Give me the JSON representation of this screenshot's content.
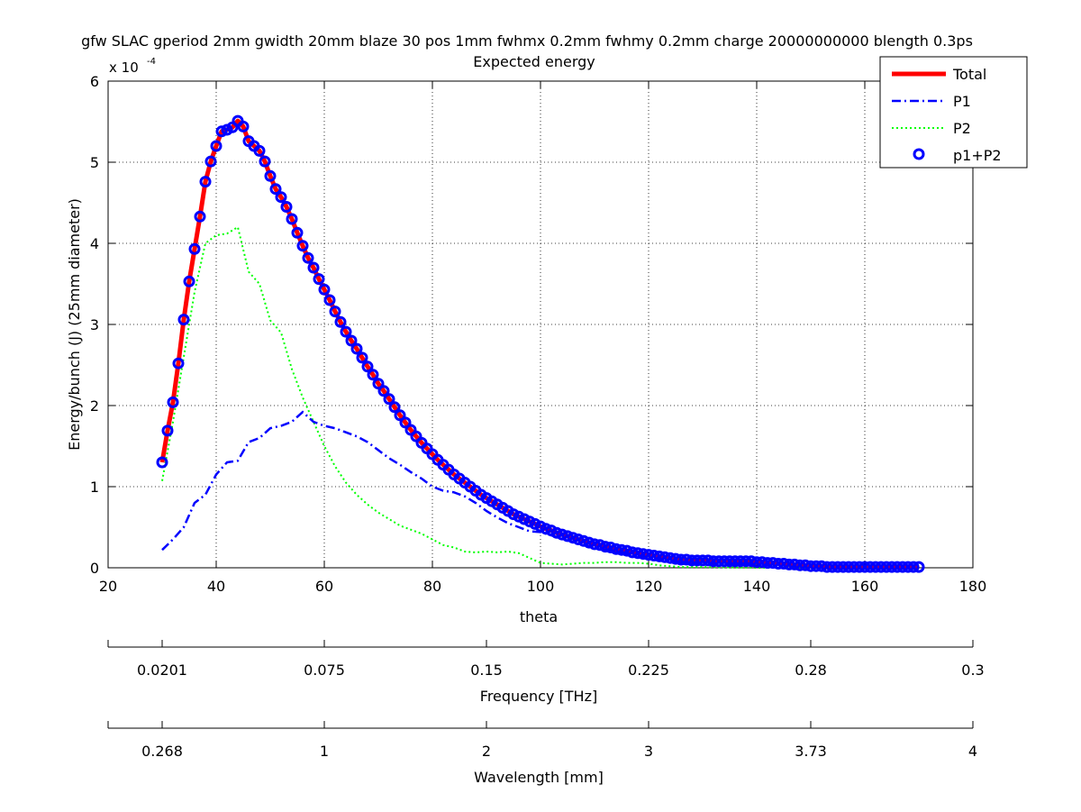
{
  "chart_data": {
    "type": "line",
    "title": "gfw SLAC gperiod 2mm gwidth 20mm blaze 30 pos 1mm fwhmx 0.2mm fwhmy 0.2mm charge 20000000000 blength 0.3ps",
    "subtitle": "Expected energy",
    "xlabel": "theta",
    "ylabel": "Energy/bunch (J) (25mm diameter)",
    "y_exponent_label": "x 10",
    "y_exponent": "-4",
    "xlim": [
      20,
      180
    ],
    "ylim": [
      0,
      6
    ],
    "x_ticks": [
      "20",
      "40",
      "60",
      "80",
      "100",
      "120",
      "140",
      "160",
      "180"
    ],
    "y_ticks": [
      "0",
      "1",
      "2",
      "3",
      "4",
      "5",
      "6"
    ],
    "grid": true,
    "legend_position": "top-right",
    "legend": [
      "Total",
      "P1",
      "P2",
      "p1+P2"
    ],
    "colors": {
      "total": "#ff0000",
      "p1": "#0000ff",
      "p2": "#00ff00",
      "p1p2": "#0000ff"
    },
    "secondary_axes": [
      {
        "label": "Frequency [THz]",
        "ticks": [
          {
            "theta": 30,
            "label": "0.0201"
          },
          {
            "theta": 60,
            "label": "0.075"
          },
          {
            "theta": 90,
            "label": "0.15"
          },
          {
            "theta": 120,
            "label": "0.225"
          },
          {
            "theta": 150,
            "label": "0.28"
          },
          {
            "theta": 180,
            "label": "0.3"
          }
        ]
      },
      {
        "label": "Wavelength [mm]",
        "ticks": [
          {
            "theta": 30,
            "label": "0.268"
          },
          {
            "theta": 60,
            "label": "1"
          },
          {
            "theta": 90,
            "label": "2"
          },
          {
            "theta": 120,
            "label": "3"
          },
          {
            "theta": 150,
            "label": "3.73"
          },
          {
            "theta": 180,
            "label": "4"
          }
        ]
      }
    ],
    "series": [
      {
        "name": "Total",
        "style": "solid",
        "x": [
          30,
          31,
          32,
          33,
          34,
          35,
          36,
          37,
          38,
          39,
          40,
          41,
          42,
          43,
          44,
          45,
          46,
          47,
          48,
          49,
          50,
          51,
          52,
          53,
          54,
          55,
          56,
          57,
          58,
          59,
          60,
          61,
          62,
          63,
          64,
          65,
          66,
          67,
          68,
          69,
          70,
          71,
          72,
          73,
          74,
          75,
          76,
          77,
          78,
          79,
          80,
          81,
          82,
          83,
          84,
          85,
          86,
          87,
          88,
          89,
          90,
          91,
          92,
          93,
          94,
          95,
          96,
          97,
          98,
          99,
          100,
          101,
          102,
          103,
          104,
          105,
          106,
          107,
          108,
          109,
          110,
          111,
          112,
          113,
          114,
          115,
          116,
          117,
          118,
          119,
          120,
          121,
          122,
          123,
          124,
          125,
          126,
          127,
          128,
          129,
          130,
          131,
          132,
          133,
          134,
          135,
          136,
          137,
          138,
          139,
          140,
          141,
          142,
          143,
          144,
          145,
          146,
          147,
          148,
          149,
          150,
          151,
          152,
          153,
          154,
          155,
          156,
          157,
          158,
          159,
          160,
          161,
          162,
          163,
          164,
          165,
          166,
          167,
          168,
          169,
          170
        ],
        "y": [
          1.3,
          1.69,
          2.04,
          2.52,
          3.06,
          3.53,
          3.93,
          4.33,
          4.76,
          5.01,
          5.2,
          5.38,
          5.4,
          5.43,
          5.51,
          5.44,
          5.26,
          5.2,
          5.14,
          5.01,
          4.83,
          4.67,
          4.57,
          4.45,
          4.3,
          4.13,
          3.97,
          3.82,
          3.7,
          3.56,
          3.43,
          3.3,
          3.16,
          3.03,
          2.91,
          2.8,
          2.7,
          2.59,
          2.48,
          2.38,
          2.27,
          2.18,
          2.08,
          1.98,
          1.88,
          1.79,
          1.7,
          1.62,
          1.54,
          1.47,
          1.4,
          1.33,
          1.27,
          1.21,
          1.15,
          1.1,
          1.05,
          1.0,
          0.95,
          0.9,
          0.86,
          0.82,
          0.78,
          0.74,
          0.7,
          0.66,
          0.63,
          0.6,
          0.57,
          0.54,
          0.51,
          0.48,
          0.46,
          0.43,
          0.41,
          0.39,
          0.37,
          0.35,
          0.33,
          0.31,
          0.29,
          0.28,
          0.26,
          0.25,
          0.23,
          0.22,
          0.21,
          0.19,
          0.18,
          0.17,
          0.16,
          0.15,
          0.14,
          0.13,
          0.12,
          0.11,
          0.1,
          0.1,
          0.09,
          0.09,
          0.09,
          0.09,
          0.08,
          0.08,
          0.08,
          0.08,
          0.08,
          0.08,
          0.08,
          0.08,
          0.07,
          0.07,
          0.06,
          0.06,
          0.05,
          0.05,
          0.04,
          0.04,
          0.03,
          0.03,
          0.02,
          0.02,
          0.02,
          0.01,
          0.01,
          0.01,
          0.01,
          0.01,
          0.01,
          0.01,
          0.01,
          0.01,
          0.01,
          0.01,
          0.01,
          0.01,
          0.01,
          0.01,
          0.01,
          0.01,
          0.01
        ]
      },
      {
        "name": "P1",
        "style": "dashdot",
        "x": [
          30,
          32,
          34,
          36,
          38,
          40,
          42,
          44,
          46,
          48,
          50,
          52,
          54,
          56,
          58,
          60,
          62,
          64,
          66,
          68,
          70,
          72,
          74,
          76,
          78,
          80,
          82,
          84,
          86,
          88,
          90,
          92,
          94,
          96,
          98,
          100,
          102,
          104,
          106,
          108,
          110,
          115,
          120,
          125,
          130,
          135,
          140,
          145,
          150,
          155,
          160,
          165,
          170
        ],
        "y": [
          0.22,
          0.35,
          0.5,
          0.8,
          0.9,
          1.15,
          1.3,
          1.32,
          1.55,
          1.6,
          1.72,
          1.75,
          1.8,
          1.92,
          1.8,
          1.75,
          1.72,
          1.67,
          1.62,
          1.55,
          1.45,
          1.35,
          1.27,
          1.18,
          1.1,
          1.0,
          0.95,
          0.93,
          0.88,
          0.8,
          0.7,
          0.62,
          0.55,
          0.5,
          0.45,
          0.44,
          0.4,
          0.36,
          0.32,
          0.28,
          0.25,
          0.18,
          0.12,
          0.07,
          0.05,
          0.05,
          0.04,
          0.03,
          0.02,
          0.01,
          0.01,
          0.01,
          0.01
        ]
      },
      {
        "name": "P2",
        "style": "dotted",
        "x": [
          30,
          32,
          34,
          36,
          38,
          40,
          42,
          44,
          46,
          48,
          50,
          52,
          54,
          56,
          58,
          60,
          62,
          64,
          66,
          68,
          70,
          72,
          74,
          76,
          78,
          80,
          82,
          84,
          86,
          88,
          90,
          92,
          94,
          96,
          98,
          100,
          102,
          104,
          106,
          108,
          110,
          112,
          114,
          116,
          118,
          120,
          122,
          124,
          126,
          128,
          130,
          140,
          150,
          160,
          170
        ],
        "y": [
          1.07,
          1.8,
          2.6,
          3.4,
          4.0,
          4.1,
          4.12,
          4.2,
          3.65,
          3.5,
          3.05,
          2.9,
          2.45,
          2.1,
          1.8,
          1.5,
          1.25,
          1.05,
          0.9,
          0.78,
          0.68,
          0.6,
          0.52,
          0.47,
          0.42,
          0.35,
          0.28,
          0.25,
          0.2,
          0.19,
          0.2,
          0.19,
          0.2,
          0.18,
          0.12,
          0.06,
          0.05,
          0.04,
          0.05,
          0.06,
          0.06,
          0.07,
          0.07,
          0.06,
          0.06,
          0.05,
          0.03,
          0.02,
          0.01,
          0.01,
          0.01,
          0.0,
          0.0,
          0.0,
          0.0
        ]
      },
      {
        "name": "p1+P2",
        "style": "markers",
        "ref": "Total"
      }
    ]
  }
}
